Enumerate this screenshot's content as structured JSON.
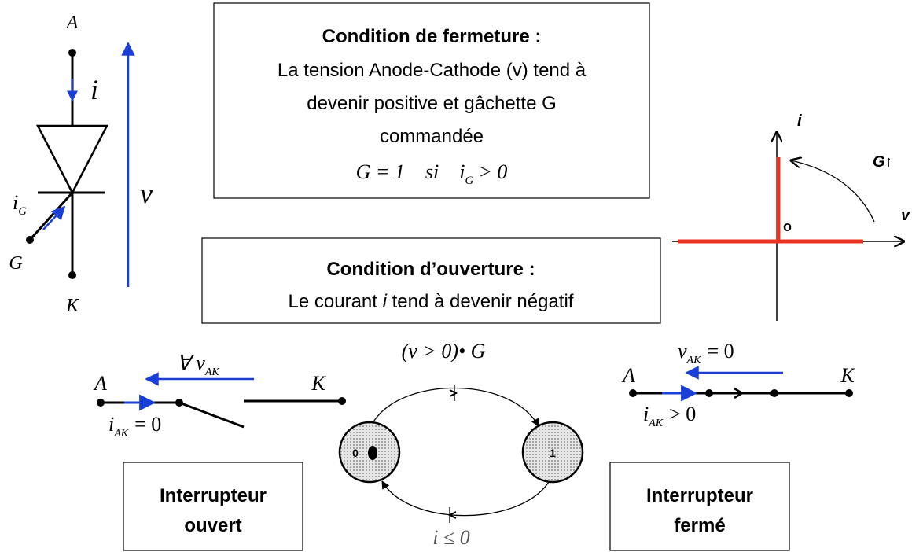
{
  "thyristor": {
    "anode": "A",
    "cathode": "K",
    "gate": "G",
    "current": "i",
    "gate_current": {
      "symbol": "i",
      "sub": "G"
    },
    "voltage": "v"
  },
  "closing_condition": {
    "title": "Condition de fermeture :",
    "lines": [
      "La tension Anode-Cathode (v) tend à",
      "devenir positive et gâchette G",
      "commandée"
    ],
    "formula": {
      "lhs": "G = 1",
      "word": "si",
      "symbol": "i",
      "sub": "G",
      "rhs": "> 0"
    }
  },
  "opening_condition": {
    "title": "Condition d’ouverture :",
    "text": [
      "Le courant ",
      "i",
      " tend à devenir négatif"
    ]
  },
  "characteristic": {
    "y_label": "i",
    "x_label": "v",
    "origin": "o",
    "gate_label": "G↑"
  },
  "open_switch": {
    "anode": "A",
    "cathode": "K",
    "voltage": {
      "prefix": "∀ v",
      "sub": "AK"
    },
    "current": {
      "symbol": "i",
      "sub": "AK",
      "rest": "= 0"
    },
    "box": [
      "Interrupteur",
      "ouvert"
    ]
  },
  "state_diagram": {
    "state_open": "0",
    "state_closed": "1",
    "closing_transition": "(v > 0)• G",
    "opening_transition": "i ≤ 0"
  },
  "closed_switch": {
    "anode": "A",
    "cathode": "K",
    "voltage": {
      "symbol": "v",
      "sub": "AK",
      "rest": "= 0"
    },
    "current": {
      "symbol": "i",
      "sub": "AK",
      "rest": "> 0"
    },
    "box": [
      "Interrupteur",
      "fermé"
    ]
  }
}
